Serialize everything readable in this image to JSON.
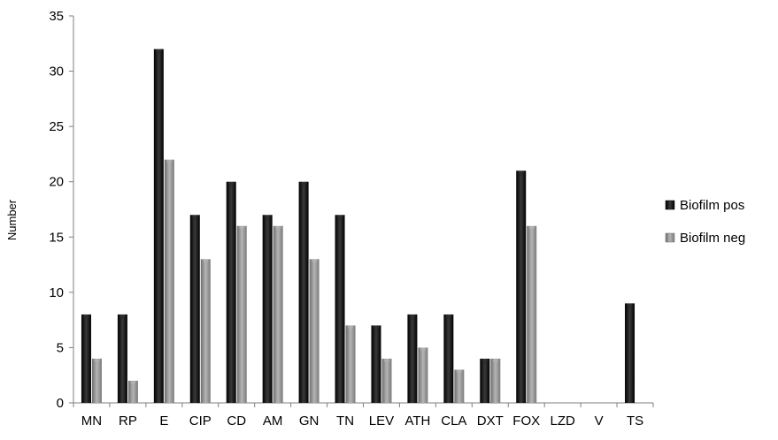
{
  "chart_data": {
    "type": "bar",
    "title": "",
    "xlabel": "",
    "ylabel": "Number",
    "ylim": [
      0,
      35
    ],
    "yticks": [
      0,
      5,
      10,
      15,
      20,
      25,
      30,
      35
    ],
    "grid": false,
    "legend_position": "right",
    "categories": [
      "MN",
      "RP",
      "E",
      "CIP",
      "CD",
      "AM",
      "GN",
      "TN",
      "LEV",
      "ATH",
      "CLA",
      "DXT",
      "FOX",
      "LZD",
      "V",
      "TS"
    ],
    "series": [
      {
        "name": "Biofilm pos",
        "color": "#1a1a1a",
        "values": [
          8,
          8,
          32,
          17,
          20,
          17,
          20,
          17,
          7,
          8,
          8,
          4,
          21,
          0,
          0,
          9
        ]
      },
      {
        "name": "Biofilm neg",
        "color": "#8c8c8c",
        "values": [
          4,
          2,
          22,
          13,
          16,
          16,
          13,
          7,
          4,
          5,
          3,
          4,
          16,
          0,
          0,
          0
        ]
      }
    ]
  }
}
